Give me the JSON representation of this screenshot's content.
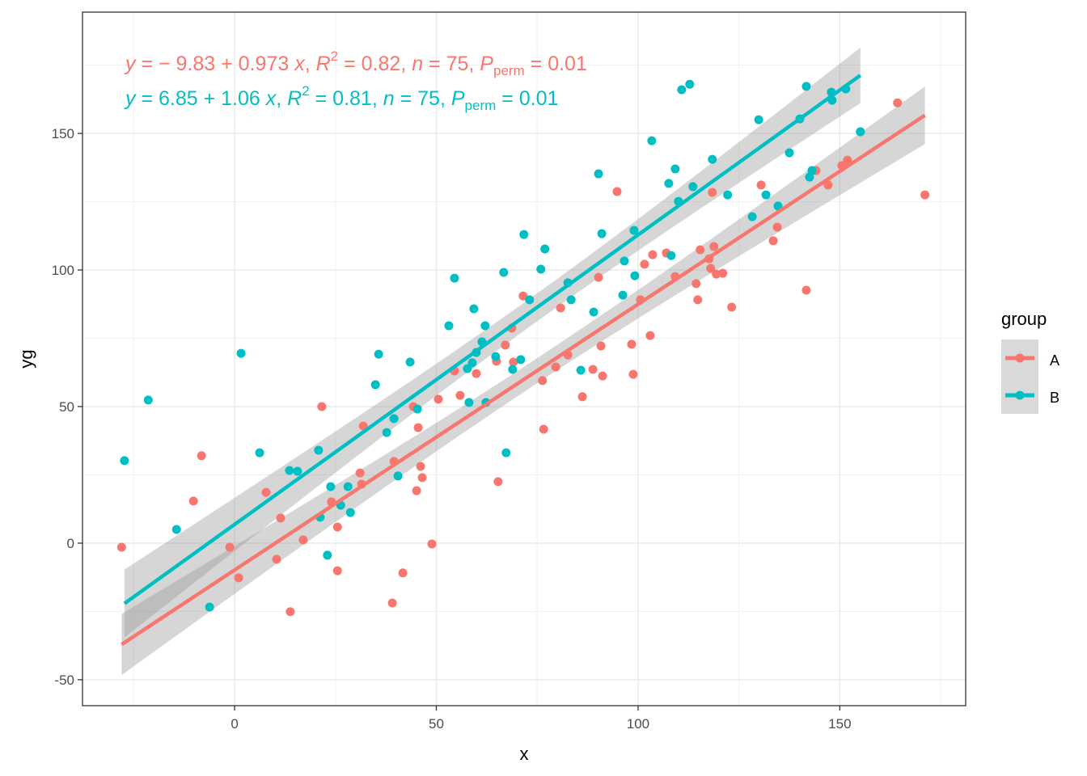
{
  "chart_data": {
    "type": "scatter",
    "title": "",
    "xlabel": "x",
    "ylabel": "yg",
    "xlim": [
      -37.7,
      181.2
    ],
    "ylim": [
      -59.5,
      194.4
    ],
    "x_ticks": [
      0,
      50,
      100,
      150
    ],
    "x_tick_labels": [
      "0",
      "50",
      "100",
      "150"
    ],
    "y_ticks": [
      -50,
      0,
      50,
      100,
      150
    ],
    "y_tick_labels": [
      "-50",
      "0",
      "50",
      "100",
      "150"
    ],
    "grid": true,
    "legend": {
      "title": "group",
      "position": "right",
      "entries": [
        "A",
        "B"
      ]
    },
    "series": [
      {
        "name": "A",
        "color": "#F8766D",
        "fit": {
          "intercept": -9.83,
          "slope": 0.973,
          "x_range": [
            -28,
            171.1
          ]
        },
        "annotation": {
          "y": "y",
          "eq_mid": " = − 9.83 + 0.973 ",
          "x": "x",
          "r2_pre": ", ",
          "R": "R",
          "sup": "2",
          "r2_val": " = 0.82, ",
          "n": "n",
          "n_val": " = 75, ",
          "P": "P",
          "sub": "perm",
          "p_val": " = 0.01"
        },
        "points": [
          [
            -28,
            -1.5
          ],
          [
            -8.2,
            32
          ],
          [
            -10.2,
            15.4
          ],
          [
            -1.2,
            -1.5
          ],
          [
            1,
            -12.7
          ],
          [
            7.8,
            18.6
          ],
          [
            10.4,
            -5.9
          ],
          [
            11.4,
            9.2
          ],
          [
            13.8,
            -25.1
          ],
          [
            17,
            1.2
          ],
          [
            21.6,
            50
          ],
          [
            24,
            15.1
          ],
          [
            25.5,
            5.9
          ],
          [
            25.5,
            -10.1
          ],
          [
            31.1,
            25.7
          ],
          [
            31.5,
            21.6
          ],
          [
            31.9,
            42.9
          ],
          [
            39.1,
            -21.9
          ],
          [
            39.5,
            29.9
          ],
          [
            41.7,
            -10.9
          ],
          [
            44.3,
            50
          ],
          [
            45.1,
            19.2
          ],
          [
            45.5,
            42.3
          ],
          [
            46.1,
            28.1
          ],
          [
            46.5,
            24
          ],
          [
            48.9,
            -0.3
          ],
          [
            50.5,
            52.7
          ],
          [
            54.5,
            63
          ],
          [
            55.9,
            54.1
          ],
          [
            59.9,
            62.1
          ],
          [
            64.9,
            66.6
          ],
          [
            65.3,
            22.5
          ],
          [
            67.1,
            72.5
          ],
          [
            68.7,
            78.7
          ],
          [
            69.1,
            66.3
          ],
          [
            71.5,
            90.5
          ],
          [
            76.3,
            59.5
          ],
          [
            76.6,
            41.7
          ],
          [
            79.6,
            64.5
          ],
          [
            80.8,
            86.1
          ],
          [
            82.6,
            68.9
          ],
          [
            86.2,
            53.6
          ],
          [
            88.8,
            63.6
          ],
          [
            90.2,
            97.3
          ],
          [
            90.8,
            72.2
          ],
          [
            91.2,
            61.2
          ],
          [
            94.8,
            128.7
          ],
          [
            98.4,
            72.8
          ],
          [
            98.8,
            61.8
          ],
          [
            100.6,
            89.1
          ],
          [
            101.6,
            102.1
          ],
          [
            103,
            76
          ],
          [
            103.6,
            105.6
          ],
          [
            107,
            106.2
          ],
          [
            109.2,
            97.6
          ],
          [
            114.4,
            95
          ],
          [
            114.8,
            89.1
          ],
          [
            115.4,
            107.4
          ],
          [
            117.6,
            104.1
          ],
          [
            118,
            100.6
          ],
          [
            118.4,
            128.4
          ],
          [
            118.8,
            108.6
          ],
          [
            119.4,
            98.5
          ],
          [
            121,
            98.8
          ],
          [
            123.2,
            86.4
          ],
          [
            130.5,
            131.1
          ],
          [
            133.5,
            110.7
          ],
          [
            134.5,
            115.7
          ],
          [
            141.7,
            92.6
          ],
          [
            144.1,
            136.4
          ],
          [
            147.1,
            131.1
          ],
          [
            150.5,
            138.2
          ],
          [
            151.9,
            140.2
          ],
          [
            164.3,
            161.2
          ],
          [
            171.1,
            127.5
          ]
        ]
      },
      {
        "name": "B",
        "color": "#00BFC4",
        "fit": {
          "intercept": 6.85,
          "slope": 1.06,
          "x_range": [
            -27.3,
            155.1
          ]
        },
        "annotation": {
          "y": "y",
          "eq_mid": " = 6.85 + 1.06 ",
          "x": "x",
          "r2_pre": ", ",
          "R": "R",
          "sup": "2",
          "r2_val": " = 0.81, ",
          "n": "n",
          "n_val": " = 75, ",
          "P": "P",
          "sub": "perm",
          "p_val": " = 0.01"
        },
        "points": [
          [
            -27.3,
            30.2
          ],
          [
            -21.4,
            52.4
          ],
          [
            -14.4,
            5
          ],
          [
            -6.2,
            -23.4
          ],
          [
            1.6,
            69.5
          ],
          [
            6.2,
            33.1
          ],
          [
            13.6,
            26.6
          ],
          [
            15.6,
            26.3
          ],
          [
            20.8,
            34
          ],
          [
            21.2,
            9.5
          ],
          [
            23,
            -4.4
          ],
          [
            23.8,
            20.7
          ],
          [
            26.3,
            13.9
          ],
          [
            28.1,
            20.7
          ],
          [
            28.7,
            11.2
          ],
          [
            34.9,
            58
          ],
          [
            35.7,
            69.2
          ],
          [
            37.7,
            40.5
          ],
          [
            39.5,
            45.6
          ],
          [
            40.5,
            24.6
          ],
          [
            43.5,
            66.3
          ],
          [
            45.3,
            49.1
          ],
          [
            53.1,
            79.6
          ],
          [
            54.5,
            97
          ],
          [
            57.7,
            63.9
          ],
          [
            58.1,
            51.5
          ],
          [
            58.9,
            66
          ],
          [
            59.3,
            85.8
          ],
          [
            59.9,
            69.8
          ],
          [
            61.3,
            73.7
          ],
          [
            62.1,
            79.6
          ],
          [
            62.3,
            51.5
          ],
          [
            64.7,
            68.3
          ],
          [
            66.7,
            99.1
          ],
          [
            67.3,
            33.1
          ],
          [
            68.9,
            63.6
          ],
          [
            70.9,
            67.2
          ],
          [
            71.7,
            113
          ],
          [
            73.1,
            89.1
          ],
          [
            75.9,
            100.3
          ],
          [
            76.9,
            107.7
          ],
          [
            82.6,
            95.3
          ],
          [
            83.4,
            89.1
          ],
          [
            85.8,
            63.3
          ],
          [
            89,
            84.6
          ],
          [
            90.2,
            135.2
          ],
          [
            91,
            113.3
          ],
          [
            96.2,
            90.8
          ],
          [
            96.6,
            103.3
          ],
          [
            99,
            114.5
          ],
          [
            99.2,
            97.9
          ],
          [
            103.4,
            147.3
          ],
          [
            107.6,
            131.7
          ],
          [
            108.2,
            105.3
          ],
          [
            109.2,
            137
          ],
          [
            110,
            125.1
          ],
          [
            110.8,
            166
          ],
          [
            112.8,
            168
          ],
          [
            113.6,
            130.5
          ],
          [
            118.4,
            140.5
          ],
          [
            122.2,
            127.5
          ],
          [
            128.3,
            119.5
          ],
          [
            129.9,
            155
          ],
          [
            131.7,
            127.5
          ],
          [
            134.7,
            123.4
          ],
          [
            137.5,
            142.9
          ],
          [
            140.1,
            155.3
          ],
          [
            141.7,
            167.2
          ],
          [
            142.5,
            134
          ],
          [
            143.1,
            136.4
          ],
          [
            147.9,
            165.1
          ],
          [
            148.1,
            162.1
          ],
          [
            151.5,
            166.3
          ],
          [
            155.1,
            150.6
          ],
          [
            155.1,
            150.6
          ]
        ]
      }
    ]
  }
}
